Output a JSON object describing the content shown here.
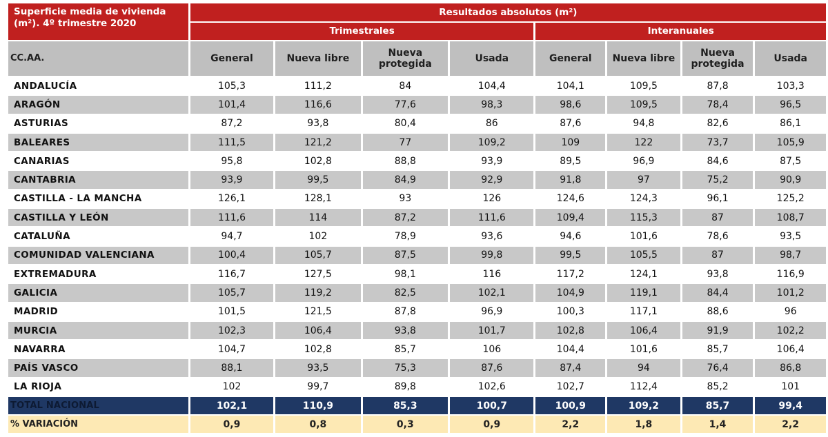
{
  "title": {
    "line1": "Superficie media de vivienda",
    "line2": "(m²).  4º trimestre 2020"
  },
  "header": {
    "group": "Resultados absolutos (m²)",
    "trimestrales": "Trimestrales",
    "interanuales": "Interanuales",
    "region_col": "CC.AA.",
    "columns": [
      "General",
      "Nueva libre",
      "Nueva protegida",
      "Usada",
      "General",
      "Nueva libre",
      "Nueva protegida",
      "Usada"
    ]
  },
  "rows": [
    {
      "name": "ANDALUCÍA",
      "values": [
        "105,3",
        "111,2",
        "84",
        "104,4",
        "104,1",
        "109,5",
        "87,8",
        "103,3"
      ]
    },
    {
      "name": "ARAGÓN",
      "values": [
        "101,4",
        "116,6",
        "77,6",
        "98,3",
        "98,6",
        "109,5",
        "78,4",
        "96,5"
      ]
    },
    {
      "name": "ASTURIAS",
      "values": [
        "87,2",
        "93,8",
        "80,4",
        "86",
        "87,6",
        "94,8",
        "82,6",
        "86,1"
      ]
    },
    {
      "name": "BALEARES",
      "values": [
        "111,5",
        "121,2",
        "77",
        "109,2",
        "109",
        "122",
        "73,7",
        "105,9"
      ]
    },
    {
      "name": "CANARIAS",
      "values": [
        "95,8",
        "102,8",
        "88,8",
        "93,9",
        "89,5",
        "96,9",
        "84,6",
        "87,5"
      ]
    },
    {
      "name": "CANTABRIA",
      "values": [
        "93,9",
        "99,5",
        "84,9",
        "92,9",
        "91,8",
        "97",
        "75,2",
        "90,9"
      ]
    },
    {
      "name": "CASTILLA - LA MANCHA",
      "values": [
        "126,1",
        "128,1",
        "93",
        "126",
        "124,6",
        "124,3",
        "96,1",
        "125,2"
      ]
    },
    {
      "name": "CASTILLA Y LEÓN",
      "values": [
        "111,6",
        "114",
        "87,2",
        "111,6",
        "109,4",
        "115,3",
        "87",
        "108,7"
      ]
    },
    {
      "name": "CATALUÑA",
      "values": [
        "94,7",
        "102",
        "78,9",
        "93,6",
        "94,6",
        "101,6",
        "78,6",
        "93,5"
      ]
    },
    {
      "name": "COMUNIDAD VALENCIANA",
      "values": [
        "100,4",
        "105,7",
        "87,5",
        "99,8",
        "99,5",
        "105,5",
        "87",
        "98,7"
      ]
    },
    {
      "name": "EXTREMADURA",
      "values": [
        "116,7",
        "127,5",
        "98,1",
        "116",
        "117,2",
        "124,1",
        "93,8",
        "116,9"
      ]
    },
    {
      "name": "GALICIA",
      "values": [
        "105,7",
        "119,2",
        "82,5",
        "102,1",
        "104,9",
        "119,1",
        "84,4",
        "101,2"
      ]
    },
    {
      "name": "MADRID",
      "values": [
        "101,5",
        "121,5",
        "87,8",
        "96,9",
        "100,3",
        "117,1",
        "88,6",
        "96"
      ]
    },
    {
      "name": "MURCIA",
      "values": [
        "102,3",
        "106,4",
        "93,8",
        "101,7",
        "102,8",
        "106,4",
        "91,9",
        "102,2"
      ]
    },
    {
      "name": "NAVARRA",
      "values": [
        "104,7",
        "102,8",
        "85,7",
        "106",
        "104,4",
        "101,6",
        "85,7",
        "106,4"
      ]
    },
    {
      "name": "PAÍS VASCO",
      "values": [
        "88,1",
        "93,5",
        "75,3",
        "87,6",
        "87,4",
        "94",
        "76,4",
        "86,8"
      ]
    },
    {
      "name": "LA RIOJA",
      "values": [
        "102",
        "99,7",
        "89,8",
        "102,6",
        "102,7",
        "112,4",
        "85,2",
        "101"
      ]
    }
  ],
  "total": {
    "name": "TOTAL NACIONAL",
    "values": [
      "102,1",
      "110,9",
      "85,3",
      "100,7",
      "100,9",
      "109,2",
      "85,7",
      "99,4"
    ]
  },
  "variation": {
    "name": "% VARIACIÓN",
    "values": [
      "0,9",
      "0,8",
      "0,3",
      "0,9",
      "2,2",
      "1,8",
      "1,4",
      "2,2"
    ]
  },
  "colors": {
    "header_red": "#c0201f",
    "header_gray": "#bfbfbf",
    "row_shade": "#c8c8c8",
    "total_navy": "#1f3864",
    "variation_yellow": "#fde9b4"
  }
}
